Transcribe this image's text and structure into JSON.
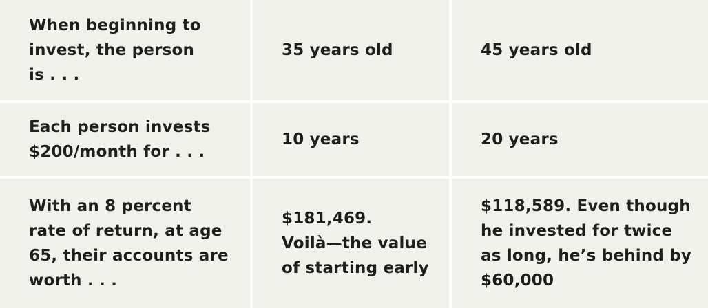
{
  "table": {
    "rows": [
      [
        [
          "When beginning to",
          "invest, the person",
          "is . . ."
        ],
        [
          "35 years old"
        ],
        [
          "45 years old"
        ]
      ],
      [
        [
          "Each person invests",
          "$200/month for . . ."
        ],
        [
          "10 years"
        ],
        [
          "20 years"
        ]
      ],
      [
        [
          "With an 8 percent",
          "rate of return, at age",
          "65, their accounts are",
          "worth . . ."
        ],
        [
          "$181,469.",
          "Voilà—the value",
          "of starting early"
        ],
        [
          "$118,589. Even though",
          "he invested for twice",
          "as long, he’s behind by",
          "$60,000"
        ]
      ]
    ]
  }
}
